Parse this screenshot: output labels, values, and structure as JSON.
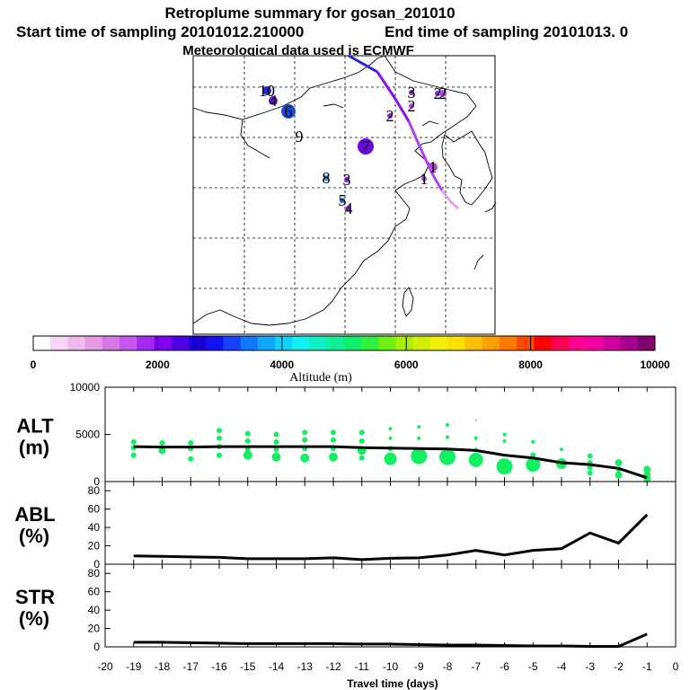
{
  "header": {
    "title": "Retroplume summary for gosan_201010",
    "start": "Start time of sampling 20101012.210000",
    "end": "End time of sampling 20101013.     0",
    "met": "Meteorological data used is ECMWF"
  },
  "map": {
    "markers": [
      {
        "label": "10",
        "size": 5,
        "color": "#2a2ad8"
      },
      {
        "label": "4",
        "size": 5,
        "color": "#6a1ad8"
      },
      {
        "label": "9",
        "size": 2,
        "color": "#1a6ad8"
      },
      {
        "label": "6",
        "size": 8,
        "color": "#1a4ad8"
      },
      {
        "label": "7",
        "size": 9,
        "color": "#6a0ad8"
      },
      {
        "label": "8",
        "size": 3,
        "color": "#1a8ad8"
      },
      {
        "label": "3",
        "size": 3,
        "color": "#8a2ad8"
      },
      {
        "label": "5",
        "size": 3,
        "color": "#1a6ad8"
      },
      {
        "label": "4",
        "size": 3,
        "color": "#6a1ad8"
      },
      {
        "label": "3",
        "size": 3,
        "color": "#8a2ad8"
      },
      {
        "label": "2",
        "size": 3,
        "color": "#8a2ad8"
      },
      {
        "label": "2",
        "size": 3,
        "color": "#b04ae0"
      },
      {
        "label": "2",
        "size": 3,
        "color": "#8a2ad8"
      },
      {
        "label": "1",
        "size": 5,
        "color": "#b04ae0"
      },
      {
        "label": "1",
        "size": 3,
        "color": "#b04ae0"
      },
      {
        "label": "2",
        "size": 4,
        "color": "#b04ae0"
      }
    ]
  },
  "colorbar": {
    "label": "Altitude (m)",
    "ticks": [
      "0",
      "2000",
      "4000",
      "6000",
      "8000",
      "10000"
    ],
    "colors": [
      "#ffffff",
      "#f6d8f6",
      "#eebaee",
      "#e49ce4",
      "#d878e8",
      "#c656ee",
      "#a628f0",
      "#8000f0",
      "#5000e8",
      "#1a00d8",
      "#1010f0",
      "#1840ff",
      "#1078ff",
      "#10a8ff",
      "#10d0ff",
      "#10f0f0",
      "#10f0c0",
      "#10f098",
      "#10f070",
      "#30f040",
      "#70f010",
      "#a8f000",
      "#d0f000",
      "#f0f000",
      "#ffe000",
      "#ffc000",
      "#ffa000",
      "#ff7800",
      "#ff4800",
      "#ff0000",
      "#ff0050",
      "#ff0090",
      "#f000a0",
      "#d000a0",
      "#a80090",
      "#800070"
    ]
  },
  "chart_data": [
    {
      "type": "line",
      "name": "ALT",
      "ylabel": "ALT\n(m)",
      "ylim": [
        0,
        10000
      ],
      "yticks": [
        "0",
        "5000",
        "10000"
      ],
      "x": [
        -19,
        -18,
        -17,
        -16,
        -15,
        -14,
        -13,
        -12,
        -11,
        -10,
        -9,
        -8,
        -7,
        -6,
        -5,
        -4,
        -3,
        -2,
        -1
      ],
      "values": [
        3700,
        3650,
        3650,
        3700,
        3700,
        3700,
        3700,
        3700,
        3600,
        3550,
        3500,
        3450,
        3300,
        2800,
        2500,
        2000,
        1800,
        1400,
        400
      ],
      "scatter": [
        {
          "x": -19,
          "y": 4200,
          "s": 3
        },
        {
          "x": -19,
          "y": 3600,
          "s": 3
        },
        {
          "x": -19,
          "y": 2800,
          "s": 3
        },
        {
          "x": -18,
          "y": 4100,
          "s": 3
        },
        {
          "x": -18,
          "y": 3300,
          "s": 4
        },
        {
          "x": -17,
          "y": 4100,
          "s": 3
        },
        {
          "x": -17,
          "y": 3500,
          "s": 3
        },
        {
          "x": -17,
          "y": 2400,
          "s": 3
        },
        {
          "x": -16,
          "y": 5400,
          "s": 3
        },
        {
          "x": -16,
          "y": 4600,
          "s": 3
        },
        {
          "x": -16,
          "y": 3700,
          "s": 3
        },
        {
          "x": -16,
          "y": 2800,
          "s": 3
        },
        {
          "x": -15,
          "y": 5100,
          "s": 3
        },
        {
          "x": -15,
          "y": 4300,
          "s": 3
        },
        {
          "x": -15,
          "y": 3400,
          "s": 3
        },
        {
          "x": -15,
          "y": 2800,
          "s": 5
        },
        {
          "x": -14,
          "y": 5000,
          "s": 3
        },
        {
          "x": -14,
          "y": 4200,
          "s": 3
        },
        {
          "x": -14,
          "y": 3400,
          "s": 3
        },
        {
          "x": -14,
          "y": 2600,
          "s": 5
        },
        {
          "x": -13,
          "y": 5200,
          "s": 3
        },
        {
          "x": -13,
          "y": 4400,
          "s": 3
        },
        {
          "x": -13,
          "y": 3500,
          "s": 3
        },
        {
          "x": -13,
          "y": 2500,
          "s": 5
        },
        {
          "x": -12,
          "y": 5200,
          "s": 3
        },
        {
          "x": -12,
          "y": 4400,
          "s": 3
        },
        {
          "x": -12,
          "y": 3500,
          "s": 3
        },
        {
          "x": -12,
          "y": 2600,
          "s": 5
        },
        {
          "x": -11,
          "y": 5200,
          "s": 3
        },
        {
          "x": -11,
          "y": 4300,
          "s": 3
        },
        {
          "x": -11,
          "y": 3300,
          "s": 5
        },
        {
          "x": -11,
          "y": 2500,
          "s": 3
        },
        {
          "x": -10,
          "y": 5600,
          "s": 2
        },
        {
          "x": -10,
          "y": 4600,
          "s": 2
        },
        {
          "x": -10,
          "y": 3500,
          "s": 3
        },
        {
          "x": -10,
          "y": 2400,
          "s": 7
        },
        {
          "x": -9,
          "y": 5800,
          "s": 2
        },
        {
          "x": -9,
          "y": 4600,
          "s": 2
        },
        {
          "x": -9,
          "y": 2700,
          "s": 9
        },
        {
          "x": -8,
          "y": 6000,
          "s": 2
        },
        {
          "x": -8,
          "y": 4700,
          "s": 2
        },
        {
          "x": -8,
          "y": 2600,
          "s": 9
        },
        {
          "x": -7,
          "y": 6500,
          "s": 1
        },
        {
          "x": -7,
          "y": 4600,
          "s": 2
        },
        {
          "x": -7,
          "y": 3400,
          "s": 2
        },
        {
          "x": -7,
          "y": 2300,
          "s": 8
        },
        {
          "x": -6,
          "y": 5000,
          "s": 2
        },
        {
          "x": -6,
          "y": 4300,
          "s": 2
        },
        {
          "x": -6,
          "y": 1600,
          "s": 9
        },
        {
          "x": -5,
          "y": 4200,
          "s": 2
        },
        {
          "x": -5,
          "y": 2800,
          "s": 3
        },
        {
          "x": -5,
          "y": 1800,
          "s": 8
        },
        {
          "x": -4,
          "y": 3400,
          "s": 2
        },
        {
          "x": -4,
          "y": 1900,
          "s": 6
        },
        {
          "x": -3,
          "y": 2700,
          "s": 3
        },
        {
          "x": -3,
          "y": 2000,
          "s": 3
        },
        {
          "x": -3,
          "y": 1500,
          "s": 3
        },
        {
          "x": -3,
          "y": 900,
          "s": 3
        },
        {
          "x": -2,
          "y": 2000,
          "s": 4
        },
        {
          "x": -2,
          "y": 1300,
          "s": 3
        },
        {
          "x": -2,
          "y": 700,
          "s": 4
        },
        {
          "x": -1,
          "y": 1300,
          "s": 4
        },
        {
          "x": -1,
          "y": 700,
          "s": 4
        },
        {
          "x": -1,
          "y": 300,
          "s": 4
        }
      ]
    },
    {
      "type": "line",
      "name": "ABL",
      "ylabel": "ABL\n(%)",
      "ylim": [
        0,
        90
      ],
      "yticks": [
        "0",
        "20",
        "40",
        "60",
        "80"
      ],
      "x": [
        -19,
        -18,
        -17,
        -16,
        -15,
        -14,
        -13,
        -12,
        -11,
        -10,
        -9,
        -8,
        -7,
        -6,
        -5,
        -4,
        -3,
        -2,
        -1
      ],
      "values": [
        9,
        8.5,
        8,
        7.5,
        6,
        6,
        6,
        7,
        5,
        6.5,
        7,
        10,
        15,
        10,
        15,
        17,
        34,
        23,
        54
      ]
    },
    {
      "type": "line",
      "name": "STR",
      "ylabel": "STR\n(%)",
      "ylim": [
        0,
        90
      ],
      "yticks": [
        "0",
        "20",
        "40",
        "60",
        "80"
      ],
      "x": [
        -19,
        -18,
        -17,
        -16,
        -15,
        -14,
        -13,
        -12,
        -11,
        -10,
        -9,
        -8,
        -7,
        -6,
        -5,
        -4,
        -3,
        -2,
        -1
      ],
      "values": [
        5,
        5,
        4.5,
        4,
        3.5,
        3.5,
        3.5,
        3.5,
        3,
        3,
        2.5,
        2,
        2,
        1.5,
        1,
        1,
        0.5,
        0.5,
        14
      ],
      "xlabel": "Travel time (days)",
      "xticks": [
        "-20",
        "-19",
        "-18",
        "-17",
        "-16",
        "-15",
        "-14",
        "-13",
        "-12",
        "-11",
        "-10",
        "-9",
        "-8",
        "-7",
        "-6",
        "-5",
        "-4",
        "-3",
        "-2",
        "-1",
        "0"
      ]
    }
  ]
}
